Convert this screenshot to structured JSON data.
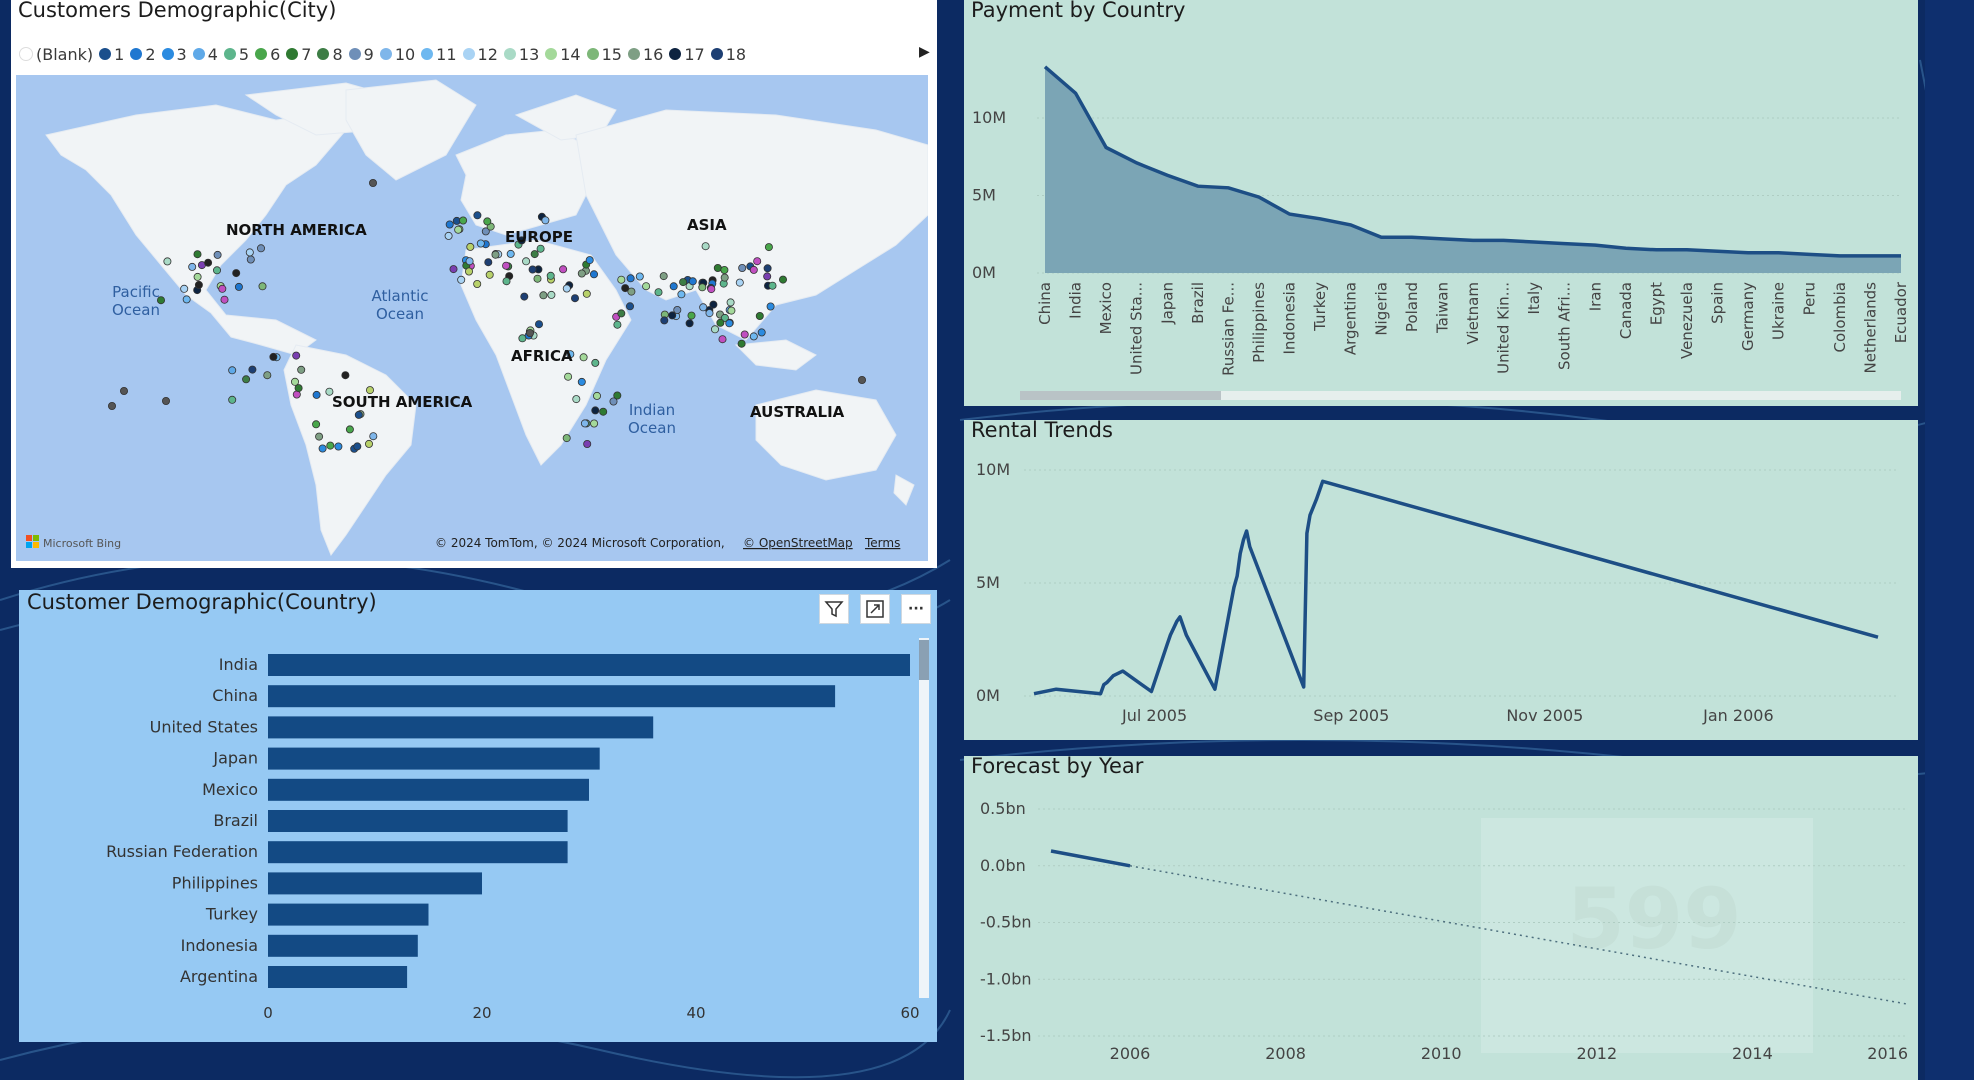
{
  "map": {
    "title": "Customers Demographic(City)",
    "legend": [
      {
        "label": "(Blank)",
        "color": "#ffffff"
      },
      {
        "label": "1",
        "color": "#1b4f8c"
      },
      {
        "label": "2",
        "color": "#1f77d0"
      },
      {
        "label": "3",
        "color": "#2b8be0"
      },
      {
        "label": "4",
        "color": "#5fa9e8"
      },
      {
        "label": "5",
        "color": "#5db58c"
      },
      {
        "label": "6",
        "color": "#49a64b"
      },
      {
        "label": "7",
        "color": "#2f7a32"
      },
      {
        "label": "8",
        "color": "#3d7d45"
      },
      {
        "label": "9",
        "color": "#6f8fb8"
      },
      {
        "label": "10",
        "color": "#7fb6ea"
      },
      {
        "label": "11",
        "color": "#6eb8f0"
      },
      {
        "label": "12",
        "color": "#a9d3f4"
      },
      {
        "label": "13",
        "color": "#a9dac6"
      },
      {
        "label": "14",
        "color": "#a4d99a"
      },
      {
        "label": "15",
        "color": "#7db778"
      },
      {
        "label": "16",
        "color": "#7e9f84"
      },
      {
        "label": "17",
        "color": "#0d2340"
      },
      {
        "label": "18",
        "color": "#1d3f73"
      }
    ],
    "labels": {
      "north_america": "NORTH AMERICA",
      "south_america": "SOUTH AMERICA",
      "europe": "EUROPE",
      "asia": "ASIA",
      "africa": "AFRICA",
      "australia": "AUSTRALIA",
      "pacific_1": "Pacific",
      "pacific_2": "Ocean",
      "atlantic_1": "Atlantic",
      "atlantic_2": "Ocean",
      "indian_1": "Indian",
      "indian_2": "Ocean"
    },
    "bing_logo": "Microsoft Bing",
    "attribution": "© 2024 TomTom, © 2024 Microsoft Corporation,",
    "osm": "© OpenStreetMap",
    "terms": "Terms"
  },
  "bar": {
    "title": "Customer Demographic(Country)",
    "icons": [
      "filter-icon",
      "focus-mode-icon",
      "more-options-icon"
    ],
    "more_label": "···"
  },
  "chart_data": [
    {
      "type": "bar",
      "orientation": "horizontal",
      "title": "Customer Demographic(Country)",
      "categories": [
        "India",
        "China",
        "United States",
        "Japan",
        "Mexico",
        "Brazil",
        "Russian Federation",
        "Philippines",
        "Turkey",
        "Indonesia",
        "Argentina"
      ],
      "values": [
        60,
        53,
        36,
        31,
        30,
        28,
        28,
        20,
        15,
        14,
        13
      ],
      "xlim": [
        0,
        60
      ],
      "xticks": [
        "0",
        "20",
        "40",
        "60"
      ],
      "bar_color": "#134a84"
    },
    {
      "type": "area",
      "title": "Payment by Country",
      "categories": [
        "China",
        "India",
        "Mexico",
        "United Sta...",
        "Japan",
        "Brazil",
        "Russian Fe...",
        "Philippines",
        "Indonesia",
        "Turkey",
        "Argentina",
        "Nigeria",
        "Poland",
        "Taiwan",
        "Vietnam",
        "United Kin...",
        "Italy",
        "South Afri...",
        "Iran",
        "Canada",
        "Egypt",
        "Venezuela",
        "Spain",
        "Germany",
        "Ukraine",
        "Peru",
        "Colombia",
        "Netherlands",
        "Ecuador"
      ],
      "values": [
        13.3,
        11.6,
        8.1,
        7.1,
        6.3,
        5.6,
        5.5,
        4.9,
        3.8,
        3.5,
        3.1,
        2.3,
        2.3,
        2.2,
        2.1,
        2.1,
        2.0,
        1.9,
        1.8,
        1.6,
        1.5,
        1.5,
        1.4,
        1.3,
        1.3,
        1.2,
        1.1,
        1.1,
        1.1
      ],
      "yticks": [
        "10M",
        "5M",
        "0M"
      ],
      "ylim": [
        0,
        14
      ],
      "unit": "M",
      "line_color": "#1d4e85",
      "fill_color": "#7ba5b5"
    },
    {
      "type": "line",
      "title": "Rental Trends",
      "x": [
        "2005-05-24",
        "2005-05-31",
        "2005-06-07",
        "2005-06-14",
        "2005-06-15",
        "2005-06-16",
        "2005-06-18",
        "2005-06-21",
        "2005-06-30",
        "2005-07-05",
        "2005-07-06",
        "2005-07-07",
        "2005-07-08",
        "2005-07-09",
        "2005-07-11",
        "2005-07-20",
        "2005-07-26",
        "2005-07-27",
        "2005-07-28",
        "2005-07-29",
        "2005-07-30",
        "2005-07-31",
        "2005-08-17",
        "2005-08-18",
        "2005-08-19",
        "2005-08-21",
        "2005-08-23",
        "2006-02-14"
      ],
      "values": [
        0.1,
        0.3,
        0.2,
        0.1,
        0.5,
        0.6,
        0.9,
        1.1,
        0.2,
        2.3,
        2.7,
        3.0,
        3.3,
        3.5,
        2.7,
        0.3,
        4.8,
        5.3,
        6.3,
        6.9,
        7.3,
        6.6,
        0.4,
        7.2,
        8.0,
        8.7,
        9.5,
        2.6
      ],
      "yticks": [
        "10M",
        "5M",
        "0M"
      ],
      "ylim": [
        0,
        10
      ],
      "xticks": [
        "Jul 2005",
        "Sep 2005",
        "Nov 2005",
        "Jan 2006"
      ],
      "line_color": "#1d4e85"
    },
    {
      "type": "line",
      "title": "Forecast by Year",
      "x": [
        2005,
        2006
      ],
      "values": [
        0.13,
        0.0
      ],
      "forecast_x": [
        2006,
        2016
      ],
      "forecast_values": [
        0.0,
        -1.22
      ],
      "yticks": [
        "0.5bn",
        "0.0bn",
        "-0.5bn",
        "-1.0bn",
        "-1.5bn"
      ],
      "ylim": [
        -1.5,
        0.5
      ],
      "xticks": [
        "2006",
        "2008",
        "2010",
        "2012",
        "2014",
        "2016"
      ],
      "line_color": "#1d4e85",
      "watermark": "599"
    }
  ]
}
